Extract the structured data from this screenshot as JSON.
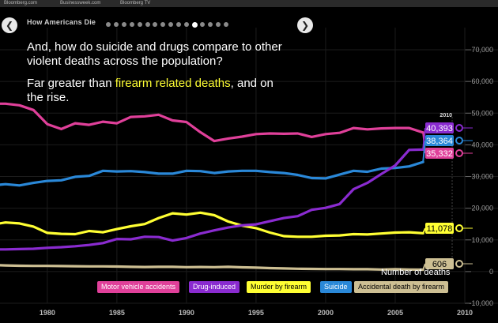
{
  "topbar": {
    "links": [
      "Bloomberg.com",
      "Businessweek.com",
      "Bloomberg TV"
    ]
  },
  "nav": {
    "title": "How Americans Die",
    "prev_glyph": "❮",
    "next_glyph": "❯",
    "dot_count": 16,
    "active_index": 11
  },
  "headline": "And, how do suicide and drugs compare to other violent deaths across the population?",
  "subhead": {
    "prefix": "Far greater than ",
    "highlight": "firearm related deaths",
    "suffix": ", and on the rise."
  },
  "colors": {
    "motor": "#e0409a",
    "drug": "#8a2bd0",
    "firearm": "#ffff33",
    "suicide": "#2a88d8",
    "accidental": "#cdbf93",
    "background": "#000000",
    "grid": "#1c1c1c",
    "axis_text": "#9a9a9a"
  },
  "chart_data": {
    "type": "line",
    "xlim": [
      1976.6,
      2010
    ],
    "ylim": [
      -10000,
      75000
    ],
    "x_ticks": [
      1980,
      1985,
      1990,
      1995,
      2000,
      2005,
      2010
    ],
    "y_ticks": [
      -10000,
      0,
      10000,
      20000,
      30000,
      40000,
      50000,
      60000,
      70000
    ],
    "y_tick_labels": [
      "-10,000",
      "0",
      "10,000",
      "20,000",
      "30,000",
      "40,000",
      "50,000",
      "60,000",
      "70,000"
    ],
    "ylabel": "Number of deaths",
    "end_year_label": "2010",
    "x": [
      1976,
      1977,
      1978,
      1979,
      1980,
      1981,
      1982,
      1983,
      1984,
      1985,
      1986,
      1987,
      1988,
      1989,
      1990,
      1991,
      1992,
      1993,
      1994,
      1995,
      1996,
      1997,
      1998,
      1999,
      2000,
      2001,
      2002,
      2003,
      2004,
      2005,
      2006,
      2007
    ],
    "series": [
      {
        "name": "Motor vehicle accidents",
        "key": "motor",
        "end_label": "35,332",
        "values": [
          53000,
          53000,
          52500,
          51000,
          46500,
          45000,
          46800,
          46300,
          47300,
          46800,
          48800,
          49000,
          49500,
          47700,
          47200,
          44000,
          41200,
          42000,
          42600,
          43400,
          43600,
          43500,
          43600,
          42500,
          43400,
          43800,
          45300,
          44900,
          45200,
          45300,
          45300,
          43900
        ]
      },
      {
        "name": "Drug-induced",
        "key": "drug",
        "end_label": "40,393",
        "values": [
          7000,
          7000,
          7100,
          7200,
          7500,
          7700,
          8000,
          8400,
          9000,
          10300,
          10200,
          11000,
          10900,
          9800,
          10600,
          12000,
          13000,
          13900,
          14600,
          14900,
          15900,
          16900,
          17500,
          19500,
          20100,
          21300,
          26000,
          28000,
          30800,
          33500,
          38400,
          38500
        ]
      },
      {
        "name": "Murder by firearm",
        "key": "firearm",
        "end_label": "11,078",
        "values": [
          14800,
          15500,
          15200,
          14200,
          12200,
          11900,
          11800,
          12800,
          12400,
          13400,
          14300,
          15000,
          16900,
          18400,
          18000,
          18600,
          17800,
          15800,
          14500,
          13700,
          12300,
          11200,
          11000,
          11000,
          11300,
          11400,
          11800,
          11700,
          12000,
          12300,
          12400,
          12100
        ]
      },
      {
        "name": "Suicide",
        "key": "suicide",
        "end_label": "38,364",
        "values": [
          27200,
          27600,
          27200,
          28000,
          28600,
          28800,
          29900,
          30200,
          31800,
          31600,
          31700,
          31400,
          30900,
          30900,
          31800,
          31700,
          31100,
          31600,
          31800,
          31800,
          31400,
          31100,
          30500,
          29500,
          29400,
          30600,
          31800,
          31500,
          32500,
          32700,
          33200,
          34600
        ]
      },
      {
        "name": "Accidental death by firearm",
        "key": "accidental",
        "end_label": "606",
        "values": [
          2100,
          1950,
          1850,
          1800,
          1800,
          1750,
          1700,
          1650,
          1650,
          1600,
          1500,
          1450,
          1500,
          1500,
          1400,
          1450,
          1400,
          1500,
          1350,
          1250,
          1100,
          1000,
          900,
          850,
          800,
          800,
          750,
          750,
          650,
          750,
          650,
          600
        ]
      }
    ]
  }
}
